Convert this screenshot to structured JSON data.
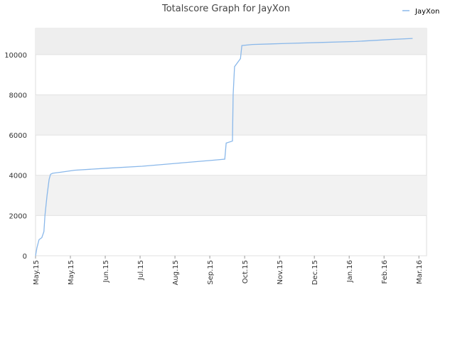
{
  "chart_data": {
    "type": "line",
    "title": "Totalscore Graph for JayXon",
    "x": [
      0,
      0.04,
      0.1,
      0.18,
      0.24,
      0.27,
      0.33,
      0.39,
      0.43,
      0.49,
      0.71,
      1.12,
      2.04,
      3.06,
      4.08,
      5.1,
      5.43,
      5.47,
      5.65,
      5.67,
      5.71,
      5.88,
      5.92,
      6.22,
      7.14,
      8.16,
      9.18,
      10.2,
      10.82
    ],
    "series": [
      {
        "name": "JayXon",
        "color": "#8ab8ea",
        "values": [
          0,
          400,
          800,
          900,
          1200,
          2000,
          3000,
          3800,
          4050,
          4100,
          4150,
          4250,
          4350,
          4450,
          4600,
          4750,
          4800,
          5600,
          5700,
          8000,
          9400,
          9800,
          10450,
          10500,
          10550,
          10600,
          10650,
          10750,
          10800
        ]
      }
    ],
    "xlim": [
      0,
      11.22
    ],
    "xticks": [
      {
        "value": 0,
        "label": "May.15"
      },
      {
        "value": 1,
        "label": "May.15"
      },
      {
        "value": 2,
        "label": "Jun.15"
      },
      {
        "value": 3,
        "label": "Jul.15"
      },
      {
        "value": 4,
        "label": "Aug.15"
      },
      {
        "value": 5,
        "label": "Sep.15"
      },
      {
        "value": 6,
        "label": "Oct.15"
      },
      {
        "value": 7,
        "label": "Nov.15"
      },
      {
        "value": 8,
        "label": "Dec.15"
      },
      {
        "value": 9,
        "label": "Jan.16"
      },
      {
        "value": 10,
        "label": "Feb.16"
      },
      {
        "value": 11,
        "label": "Mar.16"
      }
    ],
    "ylim": [
      0,
      11300
    ],
    "yticks": [
      0,
      2000,
      4000,
      6000,
      8000,
      10000
    ],
    "legend": "top-right",
    "grid": true
  }
}
